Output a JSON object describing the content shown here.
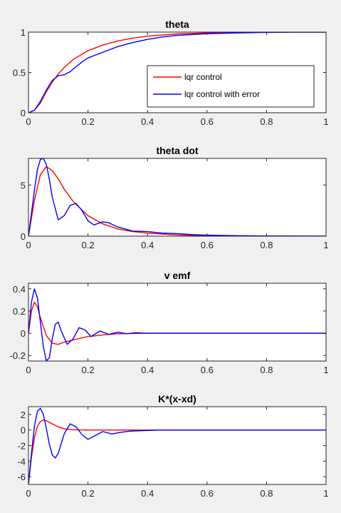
{
  "figure": {
    "background": "#f0f0f0",
    "axes_background": "#ffffff"
  },
  "chart_data": [
    {
      "type": "line",
      "title": "theta",
      "xlabel": "",
      "ylabel": "",
      "xlim": [
        0,
        1
      ],
      "ylim": [
        0,
        1
      ],
      "xticks": [
        0,
        0.2,
        0.4,
        0.6,
        0.8,
        1
      ],
      "xtick_labels": [
        "0",
        "0.2",
        "0.4",
        "0.6",
        "0.8",
        "1"
      ],
      "yticks": [
        0,
        0.5,
        1
      ],
      "ytick_labels": [
        "0",
        "0.5",
        "1"
      ],
      "grid": false,
      "legend": {
        "location": "lower-right",
        "entries": [
          "lqr control",
          "lqr control with error"
        ]
      },
      "series": [
        {
          "name": "lqr control",
          "color": "#ff0000",
          "x": [
            0,
            0.02,
            0.04,
            0.06,
            0.08,
            0.1,
            0.12,
            0.15,
            0.2,
            0.25,
            0.3,
            0.35,
            0.4,
            0.5,
            0.6,
            0.7,
            0.8,
            0.9,
            1.0
          ],
          "y": [
            0,
            0.03,
            0.12,
            0.26,
            0.38,
            0.48,
            0.56,
            0.66,
            0.77,
            0.84,
            0.89,
            0.925,
            0.95,
            0.978,
            0.99,
            0.996,
            0.999,
            1.0,
            1.0
          ]
        },
        {
          "name": "lqr control with error",
          "color": "#0000ff",
          "x": [
            0,
            0.02,
            0.04,
            0.06,
            0.08,
            0.1,
            0.12,
            0.14,
            0.16,
            0.18,
            0.2,
            0.25,
            0.3,
            0.35,
            0.4,
            0.45,
            0.5,
            0.6,
            0.7,
            0.8,
            0.9,
            1.0
          ],
          "y": [
            0,
            0.03,
            0.14,
            0.28,
            0.4,
            0.46,
            0.47,
            0.51,
            0.57,
            0.63,
            0.68,
            0.75,
            0.82,
            0.87,
            0.91,
            0.94,
            0.96,
            0.98,
            0.99,
            0.996,
            0.999,
            1.0
          ]
        }
      ]
    },
    {
      "type": "line",
      "title": "theta dot",
      "xlabel": "",
      "ylabel": "",
      "xlim": [
        0,
        1
      ],
      "ylim": [
        0,
        7.6
      ],
      "xticks": [
        0,
        0.2,
        0.4,
        0.6,
        0.8,
        1
      ],
      "xtick_labels": [
        "0",
        "0.2",
        "0.4",
        "0.6",
        "0.8",
        "1"
      ],
      "yticks": [
        0,
        5
      ],
      "ytick_labels": [
        "0",
        "5"
      ],
      "grid": false,
      "series": [
        {
          "name": "lqr control",
          "color": "#ff0000",
          "x": [
            0,
            0.02,
            0.04,
            0.06,
            0.08,
            0.1,
            0.12,
            0.15,
            0.2,
            0.25,
            0.3,
            0.35,
            0.4,
            0.5,
            0.6,
            0.7,
            0.8,
            0.9,
            1.0
          ],
          "y": [
            0,
            3.5,
            6.0,
            6.8,
            6.4,
            5.6,
            4.6,
            3.4,
            2.0,
            1.2,
            0.7,
            0.45,
            0.3,
            0.12,
            0.05,
            0.02,
            0.01,
            0,
            0
          ]
        },
        {
          "name": "lqr control with error",
          "color": "#0000ff",
          "x": [
            0,
            0.02,
            0.03,
            0.04,
            0.05,
            0.06,
            0.07,
            0.08,
            0.1,
            0.12,
            0.14,
            0.16,
            0.18,
            0.2,
            0.22,
            0.25,
            0.27,
            0.3,
            0.35,
            0.4,
            0.45,
            0.5,
            0.55,
            0.6,
            0.7,
            0.8,
            0.9,
            1.0
          ],
          "y": [
            0,
            4.5,
            6.5,
            7.5,
            7.6,
            7.0,
            5.6,
            3.8,
            1.6,
            2.0,
            3.0,
            3.2,
            2.5,
            1.5,
            1.1,
            1.4,
            1.3,
            0.9,
            0.5,
            0.45,
            0.3,
            0.25,
            0.15,
            0.1,
            0.05,
            0.02,
            0.01,
            0
          ]
        }
      ]
    },
    {
      "type": "line",
      "title": "v emf",
      "xlabel": "",
      "ylabel": "",
      "xlim": [
        0,
        1
      ],
      "ylim": [
        -0.25,
        0.45
      ],
      "xticks": [
        0,
        0.2,
        0.4,
        0.6,
        0.8,
        1
      ],
      "xtick_labels": [
        "0",
        "0.2",
        "0.4",
        "0.6",
        "0.8",
        "1"
      ],
      "yticks": [
        -0.2,
        0,
        0.2,
        0.4
      ],
      "ytick_labels": [
        "-0.2",
        "0",
        "0.2",
        "0.4"
      ],
      "grid": false,
      "series": [
        {
          "name": "lqr control",
          "color": "#ff0000",
          "x": [
            0,
            0.01,
            0.02,
            0.03,
            0.04,
            0.06,
            0.08,
            0.1,
            0.12,
            0.15,
            0.2,
            0.25,
            0.3,
            0.4,
            0.5,
            1.0
          ],
          "y": [
            0,
            0.2,
            0.28,
            0.24,
            0.14,
            -0.02,
            -0.09,
            -0.1,
            -0.08,
            -0.06,
            -0.03,
            -0.015,
            -0.005,
            0,
            0,
            0
          ]
        },
        {
          "name": "lqr control with error",
          "color": "#0000ff",
          "x": [
            0,
            0.01,
            0.02,
            0.03,
            0.04,
            0.05,
            0.06,
            0.07,
            0.08,
            0.09,
            0.1,
            0.11,
            0.13,
            0.15,
            0.17,
            0.19,
            0.21,
            0.24,
            0.27,
            0.3,
            0.33,
            0.36,
            0.4,
            0.45,
            0.5,
            0.6,
            1.0
          ],
          "y": [
            0,
            0.28,
            0.4,
            0.32,
            0.1,
            -0.12,
            -0.25,
            -0.22,
            -0.05,
            0.08,
            0.1,
            0.02,
            -0.1,
            -0.05,
            0.05,
            0.03,
            -0.03,
            0.02,
            -0.01,
            0.01,
            -0.005,
            0.005,
            0,
            0,
            0,
            0,
            0
          ]
        }
      ]
    },
    {
      "type": "line",
      "title": "K*(x-xd)",
      "xlabel": "",
      "ylabel": "",
      "xlim": [
        0,
        1
      ],
      "ylim": [
        -7,
        3
      ],
      "xticks": [
        0,
        0.2,
        0.4,
        0.6,
        0.8,
        1
      ],
      "xtick_labels": [
        "0",
        "0.2",
        "0.4",
        "0.6",
        "0.8",
        "1"
      ],
      "yticks": [
        -6,
        -4,
        -2,
        0,
        2
      ],
      "ytick_labels": [
        "-6",
        "-4",
        "-2",
        "0",
        "2"
      ],
      "grid": false,
      "series": [
        {
          "name": "lqr control",
          "color": "#ff0000",
          "x": [
            0,
            0.01,
            0.02,
            0.03,
            0.04,
            0.05,
            0.06,
            0.08,
            0.1,
            0.12,
            0.15,
            0.2,
            0.25,
            0.3,
            0.4,
            1.0
          ],
          "y": [
            -7,
            -3.5,
            -1.0,
            0.5,
            1.1,
            1.3,
            1.2,
            0.8,
            0.4,
            0.15,
            0.02,
            0,
            0,
            0,
            0,
            0
          ]
        },
        {
          "name": "lqr control with error",
          "color": "#0000ff",
          "x": [
            0,
            0.01,
            0.02,
            0.03,
            0.04,
            0.05,
            0.06,
            0.07,
            0.08,
            0.09,
            0.1,
            0.12,
            0.14,
            0.16,
            0.18,
            0.2,
            0.22,
            0.25,
            0.28,
            0.31,
            0.34,
            0.37,
            0.4,
            0.45,
            0.5,
            0.6,
            1.0
          ],
          "y": [
            -7,
            -3.0,
            0.5,
            2.4,
            2.8,
            2.0,
            0.2,
            -1.8,
            -3.2,
            -3.6,
            -3.0,
            -0.5,
            0.8,
            0.4,
            -0.6,
            -1.2,
            -0.8,
            -0.2,
            -0.5,
            -0.3,
            -0.15,
            -0.1,
            -0.05,
            0,
            0,
            0,
            0
          ]
        }
      ]
    }
  ]
}
